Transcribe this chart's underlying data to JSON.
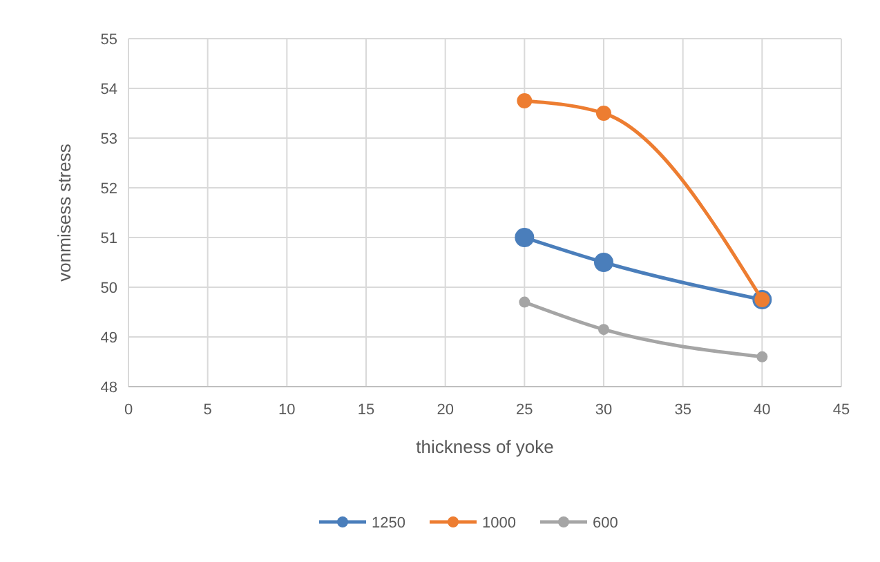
{
  "chart_data": {
    "type": "line",
    "xlabel": "thickness of yoke",
    "ylabel": "vonmisess stress",
    "x": [
      25,
      30,
      40
    ],
    "series": [
      {
        "name": "1250",
        "color": "#4a7ebb",
        "values": [
          51.0,
          50.5,
          49.75
        ]
      },
      {
        "name": "1000",
        "color": "#ed7d31",
        "values": [
          53.75,
          53.5,
          49.75
        ]
      },
      {
        "name": "600",
        "color": "#a5a5a5",
        "values": [
          49.7,
          49.15,
          48.6
        ]
      }
    ],
    "xlim": [
      0,
      45
    ],
    "xticks": [
      0,
      5,
      10,
      15,
      20,
      25,
      30,
      35,
      40,
      45
    ],
    "ylim": [
      48,
      55
    ],
    "yticks": [
      48,
      49,
      50,
      51,
      52,
      53,
      54,
      55
    ],
    "grid": true,
    "legend": "bottom",
    "marker": "circle",
    "line_style": "solid"
  }
}
